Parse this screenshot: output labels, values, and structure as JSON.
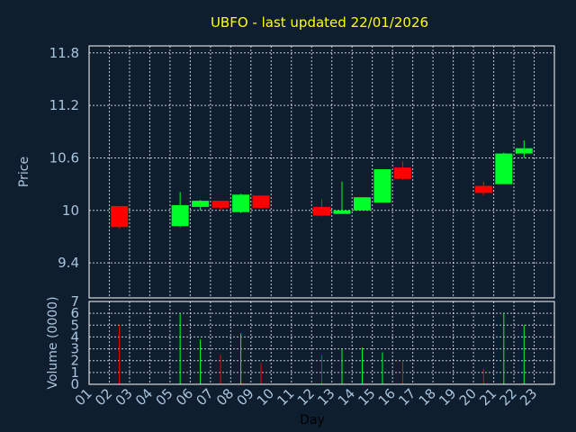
{
  "title": "UBFO - last updated 22/01/2026",
  "colors": {
    "background": "#0f1e2e",
    "title": "#ffff00",
    "up": "#00ff2a",
    "down": "#ff0000",
    "grid": "#ffffff",
    "text": "#a8c4dc"
  },
  "chart_data": [
    {
      "type": "candlestick",
      "ylabel": "Price",
      "ylim": [
        9.0,
        11.88
      ],
      "yticks": [
        "11.8",
        "11.2",
        "10.6",
        "10",
        "9.4"
      ],
      "grid": true,
      "candles": [
        {
          "day": 2,
          "open": 10.05,
          "close": 9.81,
          "high": 10.05,
          "low": 9.79
        },
        {
          "day": 5,
          "open": 9.82,
          "close": 10.06,
          "high": 10.21,
          "low": 9.81
        },
        {
          "day": 6,
          "open": 10.04,
          "close": 10.11,
          "high": 10.12,
          "low": 10.0
        },
        {
          "day": 7,
          "open": 10.11,
          "close": 10.03,
          "high": 10.11,
          "low": 10.0
        },
        {
          "day": 8,
          "open": 9.98,
          "close": 10.18,
          "high": 10.19,
          "low": 9.97
        },
        {
          "day": 9,
          "open": 10.17,
          "close": 10.03,
          "high": 10.17,
          "low": 10.02
        },
        {
          "day": 12,
          "open": 10.04,
          "close": 9.94,
          "high": 10.13,
          "low": 9.93
        },
        {
          "day": 13,
          "open": 9.96,
          "close": 10.0,
          "high": 10.33,
          "low": 9.96
        },
        {
          "day": 14,
          "open": 10.0,
          "close": 10.15,
          "high": 10.15,
          "low": 10.0
        },
        {
          "day": 15,
          "open": 10.09,
          "close": 10.47,
          "high": 10.47,
          "low": 10.09
        },
        {
          "day": 16,
          "open": 10.49,
          "close": 10.36,
          "high": 10.56,
          "low": 10.35
        },
        {
          "day": 20,
          "open": 10.28,
          "close": 10.2,
          "high": 10.33,
          "low": 10.17
        },
        {
          "day": 21,
          "open": 10.3,
          "close": 10.65,
          "high": 10.66,
          "low": 10.3
        },
        {
          "day": 22,
          "open": 10.65,
          "close": 10.71,
          "high": 10.8,
          "low": 10.6
        }
      ]
    },
    {
      "type": "bar",
      "ylabel": "Volume (0000)",
      "xlabel": "Day",
      "ylim": [
        0,
        7
      ],
      "yticks": [
        "7",
        "6",
        "5",
        "4",
        "3",
        "2",
        "1",
        "0"
      ],
      "grid": true,
      "categories": [
        "01",
        "02",
        "03",
        "04",
        "05",
        "06",
        "07",
        "08",
        "09",
        "10",
        "11",
        "12",
        "13",
        "14",
        "15",
        "16",
        "17",
        "18",
        "19",
        "20",
        "21",
        "22",
        "23"
      ],
      "bars": [
        {
          "day": 2,
          "value": 5.0,
          "direction": "down"
        },
        {
          "day": 5,
          "value": 6.0,
          "direction": "up"
        },
        {
          "day": 6,
          "value": 3.8,
          "direction": "up"
        },
        {
          "day": 7,
          "value": 2.5,
          "direction": "down"
        },
        {
          "day": 8,
          "value": 4.3,
          "direction": "up"
        },
        {
          "day": 9,
          "value": 1.8,
          "direction": "down"
        },
        {
          "day": 12,
          "value": 2.5,
          "direction": "down"
        },
        {
          "day": 13,
          "value": 3.0,
          "direction": "up"
        },
        {
          "day": 14,
          "value": 3.1,
          "direction": "up"
        },
        {
          "day": 15,
          "value": 2.7,
          "direction": "up"
        },
        {
          "day": 16,
          "value": 2.0,
          "direction": "down"
        },
        {
          "day": 20,
          "value": 1.3,
          "direction": "down"
        },
        {
          "day": 21,
          "value": 6.0,
          "direction": "up"
        },
        {
          "day": 22,
          "value": 5.0,
          "direction": "up"
        }
      ]
    }
  ]
}
